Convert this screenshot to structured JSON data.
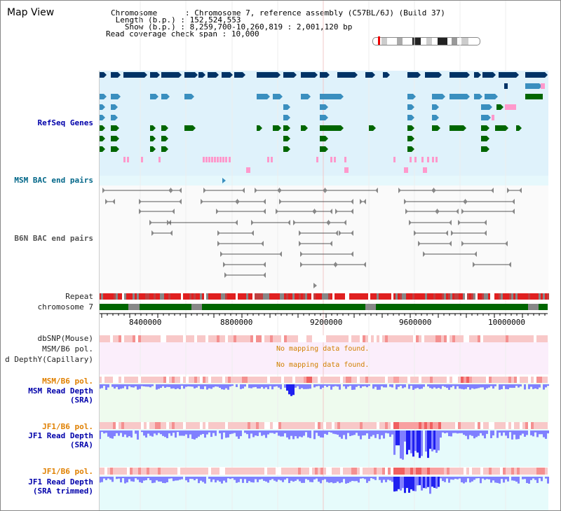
{
  "title": "Map View",
  "info": {
    "chromosome_label": "Chromosome",
    "chromosome_value": "Chromosome 7, reference assembly (C57BL/6J) (Build 37)",
    "length_label": "Length (b.p.)",
    "length_value": "152,524,553",
    "show_label": "Show (b.p.)",
    "show_value": "8,259,700-10,260,819 : 2,001,120 bp",
    "span_label": "Read coverage check span",
    "span_value": "10,000"
  },
  "tracks": {
    "refseq": "RefSeq Genes",
    "msm_bac": "MSM BAC end pairs",
    "b6n_bac": "B6N BAC end pairs",
    "repeat": "Repeat",
    "chromosome": "chromosome 7",
    "dbsnp": "dbSNP(Mouse)",
    "msm_b6_pol_top": "MSM/B6 pol.",
    "depth_cap": "d DepthY(Capillary)",
    "msm_b6_pol": "MSM/B6 pol.",
    "msm_depth_1": "MSM Read Depth",
    "msm_depth_2": "(SRA)",
    "jf1_pol_1": "JF1/B6 pol.",
    "jf1_depth_1": "JF1 Read Depth",
    "jf1_depth_2": "(SRA)",
    "jf1_pol_2": "JF1/B6 pol.",
    "jf1_trim_1": "JF1 Read Depth",
    "jf1_trim_2": "(SRA trimmed)"
  },
  "axis_ticks": [
    "8400000",
    "8800000",
    "9200000",
    "9600000",
    "10000000"
  ],
  "no_data_1": "No mapping data found.",
  "no_data_2": "No mapping data found.",
  "colors": {
    "gene_dark": "#003366",
    "gene_mid": "#3a8fbf",
    "gene_green": "#006600",
    "gene_pink": "#ff99cc",
    "band_blue": "#dff2fb",
    "repeat_red": "#e02020",
    "chrom_green": "#006600",
    "depth_blue": "#8080ff",
    "depth_deep": "#2020f0",
    "pol_pink": "#f8c8c8"
  }
}
